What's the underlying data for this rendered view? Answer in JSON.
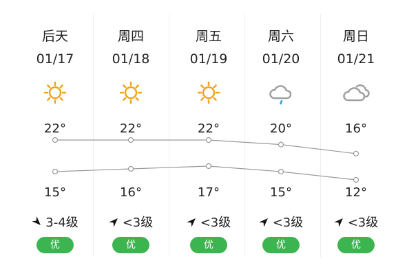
{
  "days": [
    {
      "day": "后天",
      "date": "01/17",
      "icon": "sun-icon",
      "high": "22°",
      "low": "15°",
      "wind": "3-4级",
      "wind_dir": "down-right",
      "aqi": "优"
    },
    {
      "day": "周四",
      "date": "01/18",
      "icon": "sun-icon",
      "high": "22°",
      "low": "16°",
      "wind": "<3级",
      "wind_dir": "up-right",
      "aqi": "优"
    },
    {
      "day": "周五",
      "date": "01/19",
      "icon": "sun-icon",
      "high": "22°",
      "low": "17°",
      "wind": "<3级",
      "wind_dir": "up-right",
      "aqi": "优"
    },
    {
      "day": "周六",
      "date": "01/20",
      "icon": "rain-cloud-icon",
      "high": "20°",
      "low": "15°",
      "wind": "<3级",
      "wind_dir": "up-right",
      "aqi": "优"
    },
    {
      "day": "周日",
      "date": "01/21",
      "icon": "cloudy-icon",
      "high": "16°",
      "low": "12°",
      "wind": "<3级",
      "wind_dir": "up-right",
      "aqi": "优"
    }
  ],
  "highs": [
    22,
    22,
    22,
    20,
    16
  ],
  "lows": [
    15,
    16,
    17,
    15,
    12
  ],
  "colors": {
    "sun": "#f0a420",
    "cloud": "#a0a0a0",
    "rain": "#2aa0e0",
    "aqi": "#3cb551",
    "line": "#999999"
  }
}
